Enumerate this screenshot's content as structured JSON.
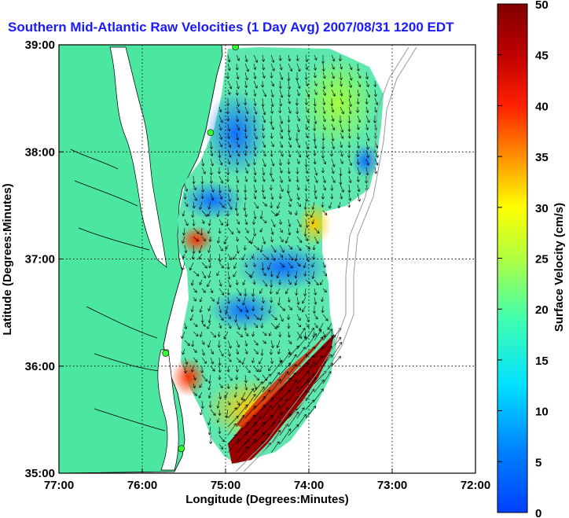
{
  "title": "Southern Mid-Atlantic Raw Velocities (1 Day Avg) 2007/08/31 1200 EDT",
  "xlabel": "Longitude (Degrees:Minutes)",
  "ylabel": "Latitude (Degrees:Minutes)",
  "colorbar_label": "Surface Velocity (cm/s)",
  "x_ticks": [
    "77:00",
    "76:00",
    "75:00",
    "74:00",
    "73:00",
    "72:00"
  ],
  "y_ticks": [
    "39:00",
    "38:00",
    "37:00",
    "36:00",
    "35:00"
  ],
  "colorbar_ticks": [
    "0",
    "5",
    "10",
    "15",
    "20",
    "25",
    "30",
    "35",
    "40",
    "45",
    "50"
  ],
  "colors": {
    "land": "#4be6a0",
    "water": "#ffffff",
    "title": "#1a1aff",
    "station": "#33ff33"
  },
  "chart_data": {
    "type": "heatmap",
    "xlim": [
      -77,
      -72
    ],
    "ylim": [
      35,
      39
    ],
    "clim": [
      0,
      50
    ],
    "grid": true,
    "stations": [
      {
        "lon": -74.88,
        "lat": 38.98
      },
      {
        "lon": -75.18,
        "lat": 38.18
      },
      {
        "lon": -75.72,
        "lat": 36.12
      },
      {
        "lon": -75.53,
        "lat": 35.23
      }
    ]
  }
}
